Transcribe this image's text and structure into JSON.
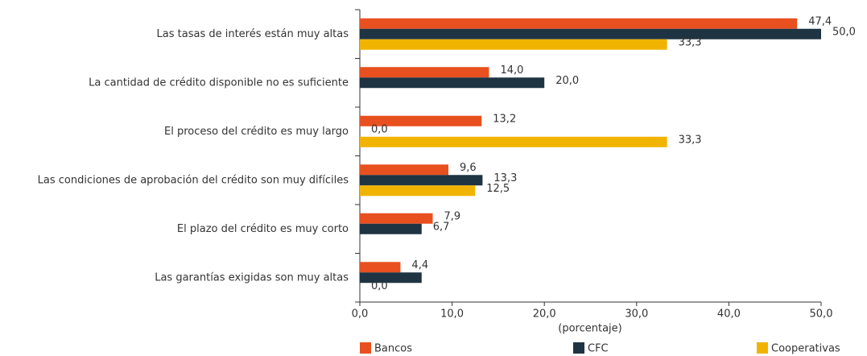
{
  "chart_data": {
    "type": "bar",
    "orientation": "horizontal",
    "categories": [
      "Las tasas de interés están muy altas",
      "La cantidad de crédito disponible no es suficiente",
      "El proceso del crédito es muy largo",
      "Las condiciones de aprobación del crédito son muy difíciles",
      "El plazo del crédito es muy corto",
      "Las garantías exigidas son muy altas"
    ],
    "series": [
      {
        "name": "Bancos",
        "color": "#e8501f",
        "values": [
          47.4,
          14.0,
          13.2,
          9.6,
          7.9,
          4.4
        ],
        "value_labels": [
          "47,4",
          "14,0",
          "13,2",
          "9,6",
          "7,9",
          "4,4"
        ]
      },
      {
        "name": "CFC",
        "color": "#1f3442",
        "values": [
          50.0,
          20.0,
          0.0,
          13.3,
          6.7,
          6.7
        ],
        "value_labels": [
          "50,0",
          "20,0",
          "0,0",
          "13,3",
          "6,7",
          null
        ]
      },
      {
        "name": "Cooperativas",
        "color": "#f0b400",
        "values": [
          33.3,
          null,
          33.3,
          12.5,
          null,
          0.0
        ],
        "value_labels": [
          "33,3",
          null,
          "33,3",
          "12,5",
          null,
          "0,0"
        ]
      }
    ],
    "xlabel": "(porcentaje)",
    "xlim": [
      0,
      50
    ],
    "xticks": [
      {
        "value": 0,
        "label": "0,0"
      },
      {
        "value": 10,
        "label": "10,0"
      },
      {
        "value": 20,
        "label": "20,0"
      },
      {
        "value": 30,
        "label": "30,0"
      },
      {
        "value": 40,
        "label": "40,0"
      },
      {
        "value": 50,
        "label": "50,0"
      }
    ],
    "legend": "bottom"
  }
}
